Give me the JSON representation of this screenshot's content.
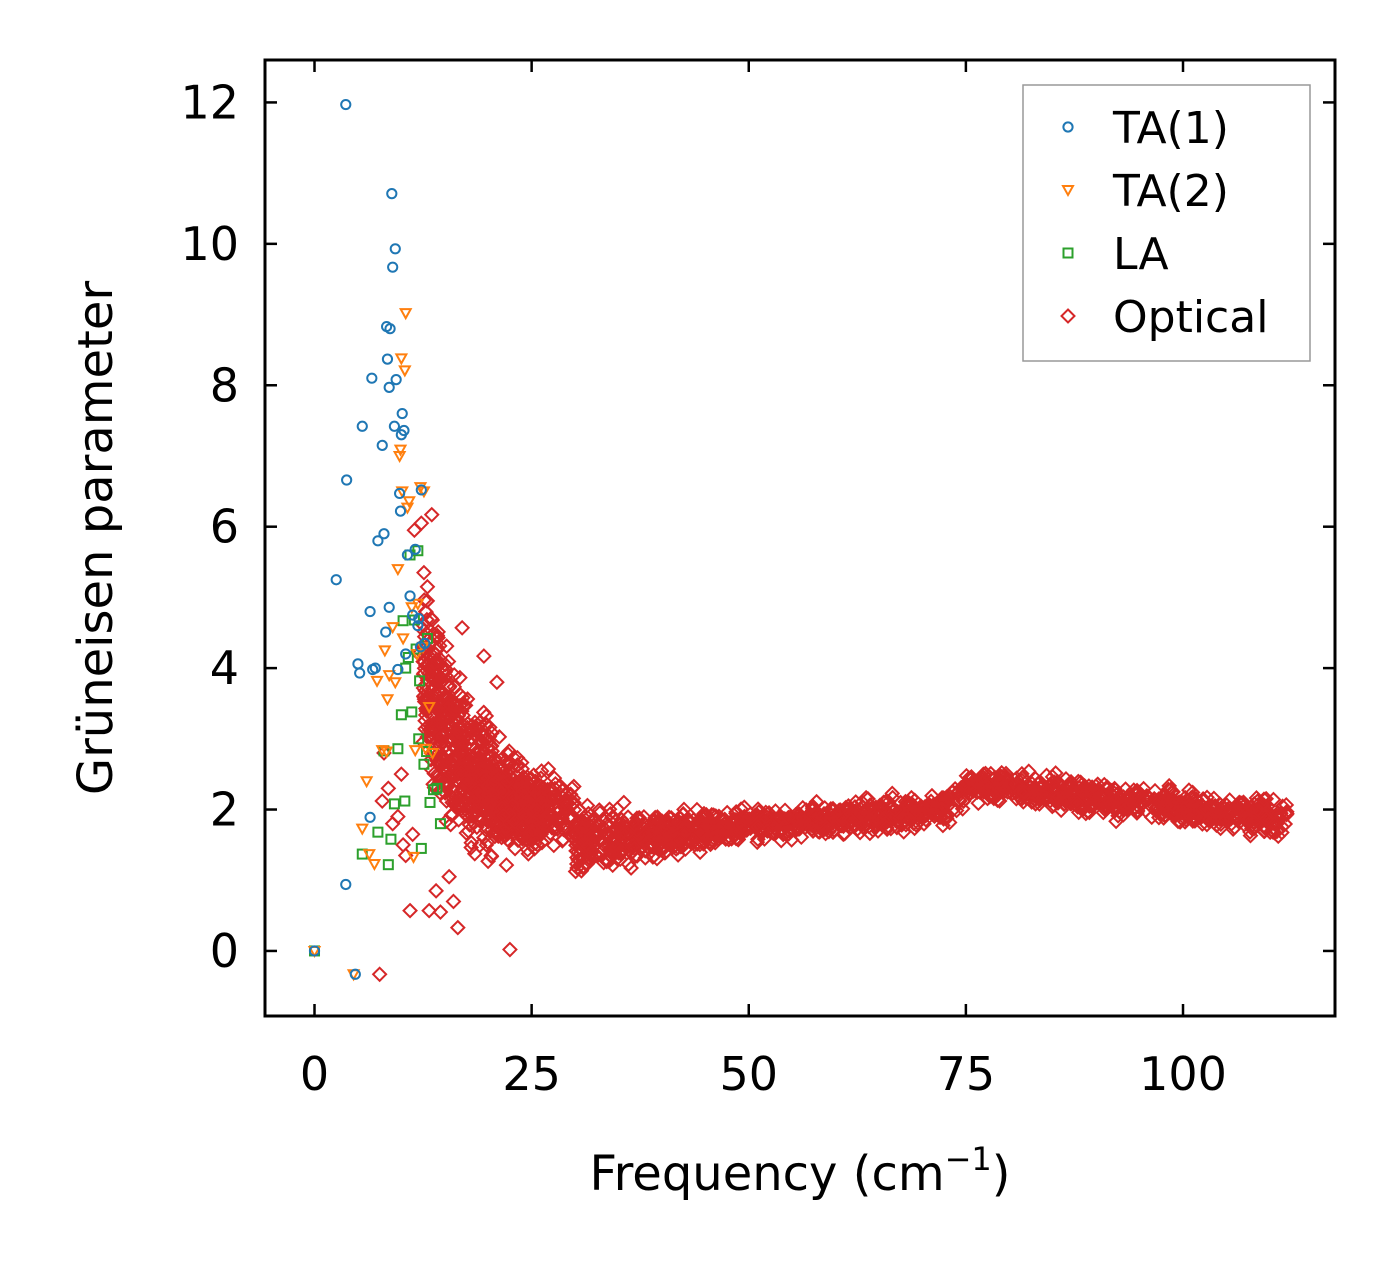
{
  "chart_data": {
    "type": "scatter",
    "xlabel": "Frequency (cm",
    "xlabel_sup": "−1",
    "xlabel_close": ")",
    "ylabel": "Grüneisen parameter",
    "xlim": [
      -5.7,
      117.5
    ],
    "ylim": [
      -0.92,
      12.6
    ],
    "x_ticks": [
      0,
      25,
      50,
      75,
      100
    ],
    "x_tick_labels": [
      "0",
      "25",
      "50",
      "75",
      "100"
    ],
    "y_ticks": [
      0,
      2,
      4,
      6,
      8,
      10,
      12
    ],
    "y_tick_labels": [
      "0",
      "2",
      "4",
      "6",
      "8",
      "10",
      "12"
    ],
    "legend_position": "top-right",
    "series": [
      {
        "name": "TA(1)",
        "marker": "circle",
        "color": "#1f77b4",
        "x": [
          0,
          3.6,
          3.6,
          3.7,
          2.5,
          4.7,
          5.0,
          5.2,
          5.5,
          6.4,
          6.4,
          6.6,
          6.7,
          7.3,
          7.8,
          8.0,
          8.2,
          8.3,
          8.4,
          8.6,
          8.7,
          8.9,
          9.0,
          9.2,
          9.3,
          9.6,
          9.8,
          9.9,
          10.0,
          10.1,
          10.3,
          10.5,
          10.7,
          11.0,
          11.3,
          11.6,
          11.9,
          12.0,
          12.2,
          12.3,
          12.7,
          8.6,
          9.4,
          7.0
        ],
        "y": [
          0,
          11.97,
          0.94,
          6.66,
          5.25,
          -0.33,
          4.06,
          3.93,
          7.42,
          1.89,
          4.8,
          8.1,
          3.98,
          5.8,
          7.15,
          5.9,
          4.51,
          8.83,
          8.37,
          4.86,
          8.8,
          10.71,
          9.67,
          7.42,
          9.93,
          3.98,
          6.47,
          6.22,
          7.3,
          7.6,
          7.36,
          4.2,
          5.6,
          5.02,
          4.75,
          5.68,
          4.6,
          4.7,
          4.3,
          6.52,
          4.35,
          7.97,
          8.08,
          4.0
        ]
      },
      {
        "name": "TA(2)",
        "marker": "triangle-down",
        "color": "#ff7f0e",
        "x": [
          0,
          4.5,
          5.5,
          6.0,
          6.3,
          6.9,
          7.2,
          7.8,
          8.1,
          8.4,
          8.6,
          9.0,
          9.3,
          9.6,
          9.8,
          10.0,
          10.1,
          10.4,
          10.5,
          10.7,
          10.9,
          11.2,
          11.4,
          11.6,
          11.9,
          12.2,
          12.5,
          12.8,
          13.2,
          13.6,
          10.2,
          11.8,
          8.3,
          9.9,
          12.6
        ],
        "y": [
          0,
          -0.33,
          1.73,
          2.4,
          1.37,
          1.23,
          3.82,
          2.84,
          4.25,
          3.56,
          3.9,
          4.58,
          3.8,
          5.4,
          7.0,
          8.38,
          6.5,
          8.21,
          9.02,
          6.27,
          6.36,
          4.86,
          1.33,
          2.84,
          4.91,
          6.56,
          4.3,
          2.86,
          3.45,
          2.8,
          4.42,
          4.2,
          2.82,
          7.09,
          6.5
        ]
      },
      {
        "name": "LA",
        "marker": "square",
        "color": "#2ca02c",
        "x": [
          0,
          5.5,
          7.3,
          8.0,
          8.5,
          8.8,
          9.2,
          9.6,
          10.0,
          10.2,
          10.5,
          10.8,
          11.2,
          11.5,
          11.7,
          12.0,
          12.3,
          12.6,
          12.9,
          13.3,
          13.7,
          14.1,
          14.5,
          10.4,
          11.9,
          12.1,
          13.0,
          11.0
        ],
        "y": [
          0,
          1.37,
          1.68,
          2.83,
          1.22,
          1.58,
          2.08,
          2.86,
          3.34,
          4.67,
          4.0,
          4.15,
          3.38,
          4.68,
          4.27,
          3.0,
          1.45,
          2.64,
          2.82,
          2.1,
          2.28,
          2.3,
          1.8,
          2.12,
          5.66,
          3.82,
          4.42,
          5.6
        ]
      },
      {
        "name": "Optical",
        "marker": "diamond",
        "color": "#d62728"
      }
    ]
  },
  "legend": [
    "TA(1)",
    "TA(2)",
    "LA",
    "Optical"
  ]
}
